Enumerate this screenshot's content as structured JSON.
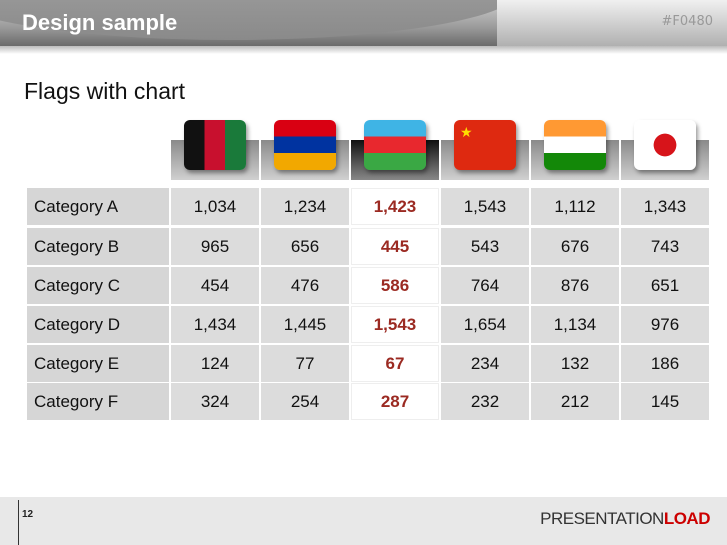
{
  "header": {
    "title": "Design sample",
    "code": "#F0480"
  },
  "subtitle": "Flags with chart",
  "flags": [
    {
      "country": "Afghanistan",
      "icon": "afghanistan-flag-icon"
    },
    {
      "country": "Armenia",
      "icon": "armenia-flag-icon"
    },
    {
      "country": "Azerbaijan",
      "icon": "azerbaijan-flag-icon",
      "highlighted": true
    },
    {
      "country": "China",
      "icon": "china-flag-icon"
    },
    {
      "country": "India",
      "icon": "india-flag-icon"
    },
    {
      "country": "Japan",
      "icon": "japan-flag-icon"
    }
  ],
  "colors": {
    "highlight_text": "#9b2a22",
    "logo_accent": "#cc0000"
  },
  "table": {
    "rows": [
      {
        "label": "Category A",
        "values": [
          "1,034",
          "1,234",
          "1,423",
          "1,543",
          "1,112",
          "1,343"
        ]
      },
      {
        "label": "Category B",
        "values": [
          "965",
          "656",
          "445",
          "543",
          "676",
          "743"
        ]
      },
      {
        "label": "Category C",
        "values": [
          "454",
          "476",
          "586",
          "764",
          "876",
          "651"
        ]
      },
      {
        "label": "Category D",
        "values": [
          "1,434",
          "1,445",
          "1,543",
          "1,654",
          "1,134",
          "976"
        ]
      },
      {
        "label": "Category E",
        "values": [
          "124",
          "77",
          "67",
          "234",
          "132",
          "186"
        ]
      },
      {
        "label": "Category F",
        "values": [
          "324",
          "254",
          "287",
          "232",
          "212",
          "145"
        ]
      }
    ]
  },
  "footer": {
    "page": "12",
    "logo_main": "PRESENTATION",
    "logo_accent": "LOAD"
  }
}
